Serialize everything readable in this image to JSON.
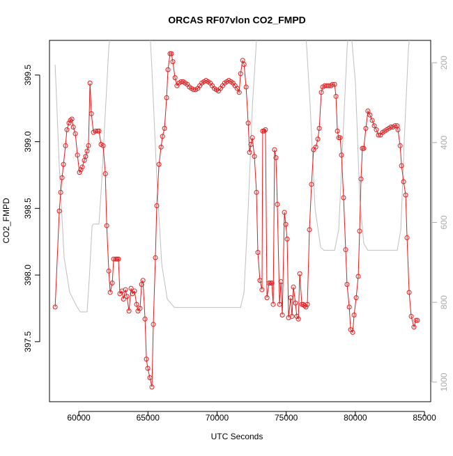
{
  "chart_data": {
    "type": "line",
    "title": "ORCAS RF07vlon CO2_FMPD",
    "x_label": "UTC Seconds",
    "y_label": "CO2_FMPD",
    "xlim": [
      57880,
      85450
    ],
    "xticks": [
      60000,
      65000,
      70000,
      75000,
      80000,
      85000
    ],
    "ylim": [
      397.05,
      399.76
    ],
    "yticks": [
      397.5,
      {
        "value": 398,
        "label": "398.0"
      },
      398.5,
      {
        "value": 399,
        "label": "399.0"
      },
      399.5
    ],
    "y2lim": [
      1049,
      144
    ],
    "y2ticks": [
      200,
      400,
      600,
      800,
      1000
    ],
    "series": [
      {
        "color": "#e31a1c",
        "markers": true,
        "x": [
          58290,
          58590,
          58690,
          58790,
          58890,
          59040,
          59140,
          59290,
          59390,
          59500,
          59600,
          59750,
          59900,
          60050,
          60150,
          60250,
          60400,
          60500,
          60600,
          60700,
          60810,
          60910,
          61060,
          61210,
          61360,
          61460,
          61610,
          61760,
          61920,
          62020,
          62170,
          62270,
          62420,
          62520,
          62670,
          62770,
          62870,
          62970,
          63120,
          63230,
          63380,
          63480,
          63630,
          63780,
          63880,
          64030,
          64180,
          64280,
          64430,
          64540,
          64640,
          64790,
          64890,
          64990,
          65140,
          65290,
          65390,
          65540,
          65640,
          65800,
          65950,
          66050,
          66200,
          66350,
          66450,
          66600,
          66700,
          66800,
          66960,
          67100,
          67250,
          67400,
          67550,
          67700,
          67850,
          68000,
          68150,
          68300,
          68450,
          68600,
          68750,
          68900,
          69050,
          69200,
          69350,
          69500,
          69650,
          69800,
          69950,
          70100,
          70250,
          70400,
          70550,
          70700,
          70850,
          71000,
          71150,
          71300,
          71450,
          71600,
          71700,
          71850,
          71950,
          72100,
          72250,
          72350,
          72450,
          72550,
          72700,
          72850,
          72950,
          73100,
          73250,
          73300,
          73400,
          73500,
          73610,
          73760,
          73860,
          73960,
          74060,
          74160,
          74260,
          74360,
          74520,
          74620,
          74720,
          74870,
          74970,
          75070,
          75170,
          75320,
          75420,
          75520,
          75670,
          75770,
          75880,
          75980,
          76130,
          76230,
          76330,
          76430,
          76530,
          76680,
          76830,
          76980,
          77140,
          77290,
          77390,
          77540,
          77640,
          77790,
          77940,
          78090,
          78240,
          78340,
          78500,
          78600,
          78700,
          78800,
          78900,
          79000,
          79150,
          79300,
          79400,
          79560,
          79660,
          79810,
          79910,
          80060,
          80210,
          80310,
          80410,
          80510,
          80610,
          80760,
          80910,
          81060,
          81220,
          81370,
          81520,
          81670,
          81820,
          81970,
          82120,
          82270,
          82420,
          82570,
          82720,
          82870,
          83020,
          83080,
          83240,
          83340,
          83490,
          83640,
          83740,
          83890,
          84040,
          84240,
          84390,
          84490
        ],
        "values": [
          397.76,
          398.48,
          398.62,
          398.73,
          398.83,
          398.97,
          399.09,
          399.14,
          399.16,
          399.17,
          399.11,
          399.06,
          398.9,
          398.77,
          398.79,
          398.81,
          398.86,
          398.89,
          398.93,
          398.97,
          399.44,
          399.21,
          399.07,
          399.08,
          399.08,
          399.08,
          398.98,
          398.97,
          398.76,
          398.37,
          398.03,
          397.87,
          397.94,
          398.12,
          398.12,
          398.12,
          398.12,
          397.86,
          397.88,
          397.82,
          397.89,
          397.84,
          397.73,
          397.9,
          397.86,
          397.88,
          397.78,
          397.73,
          397.75,
          397.93,
          397.96,
          397.67,
          397.37,
          397.3,
          397.23,
          397.16,
          397.63,
          398.13,
          398.52,
          398.83,
          398.96,
          399.04,
          399.1,
          399.33,
          399.54,
          399.66,
          399.66,
          399.6,
          399.48,
          399.42,
          399.44,
          399.45,
          399.45,
          399.44,
          399.43,
          399.41,
          399.4,
          399.39,
          399.39,
          399.4,
          399.42,
          399.44,
          399.45,
          399.46,
          399.45,
          399.44,
          399.42,
          399.4,
          399.39,
          399.38,
          399.4,
          399.42,
          399.44,
          399.45,
          399.46,
          399.45,
          399.44,
          399.42,
          399.4,
          399.37,
          399.51,
          399.61,
          399.58,
          399.41,
          399.14,
          398.92,
          398.98,
          399.03,
          398.89,
          398.62,
          398.17,
          397.96,
          397.89,
          399.08,
          399.08,
          399.09,
          397.83,
          397.94,
          397.94,
          397.94,
          397.78,
          398.94,
          398.88,
          398.53,
          397.78,
          397.95,
          397.7,
          398.47,
          398.38,
          398.27,
          397.68,
          397.83,
          397.69,
          397.91,
          397.79,
          397.69,
          397.67,
          398.01,
          397.78,
          397.78,
          397.77,
          397.76,
          397.78,
          398.34,
          398.68,
          398.94,
          398.96,
          399.02,
          399.1,
          399.37,
          399.41,
          399.42,
          399.42,
          399.42,
          399.42,
          399.43,
          399.43,
          399.34,
          399.08,
          399.03,
          399.03,
          398.9,
          398.58,
          398.19,
          397.93,
          397.76,
          397.59,
          397.57,
          397.7,
          397.83,
          397.99,
          398.33,
          398.72,
          398.95,
          398.95,
          399.1,
          399.23,
          399.2,
          399.16,
          399.12,
          399.09,
          399.05,
          399.05,
          399.07,
          399.08,
          399.09,
          399.1,
          399.11,
          399.11,
          399.12,
          399.12,
          399.09,
          398.97,
          398.82,
          398.7,
          398.6,
          398.28,
          397.87,
          397.69,
          397.61,
          397.66,
          397.66
        ]
      },
      {
        "color": "#bebebe",
        "axis": "y2",
        "markers": false,
        "x": [
          58290,
          58590,
          58940,
          59340,
          59850,
          60100,
          60600,
          60760,
          60960,
          61060,
          61460,
          61660,
          61870,
          62170,
          62230,
          63000,
          65180,
          65290,
          65650,
          66000,
          66400,
          66910,
          67400,
          71700,
          71950,
          72250,
          72560,
          72850,
          75000,
          76450,
          76730,
          77090,
          77490,
          77740,
          78500,
          78800,
          79100,
          79400,
          79450,
          79600,
          79750,
          80010,
          80310,
          80610,
          80910,
          83030,
          83290,
          83540,
          83840,
          83900
        ],
        "values": [
          205,
          461,
          688,
          775,
          810,
          824,
          824,
          740,
          609,
          604,
          604,
          496,
          357,
          162,
          144,
          null,
          144,
          217,
          496,
          705,
          792,
          813,
          813,
          813,
          775,
          566,
          305,
          144,
          null,
          144,
          305,
          566,
          662,
          670,
          670,
          618,
          392,
          165,
          144,
          null,
          144,
          252,
          531,
          653,
          670,
          670,
          618,
          392,
          165,
          144
        ]
      }
    ]
  }
}
